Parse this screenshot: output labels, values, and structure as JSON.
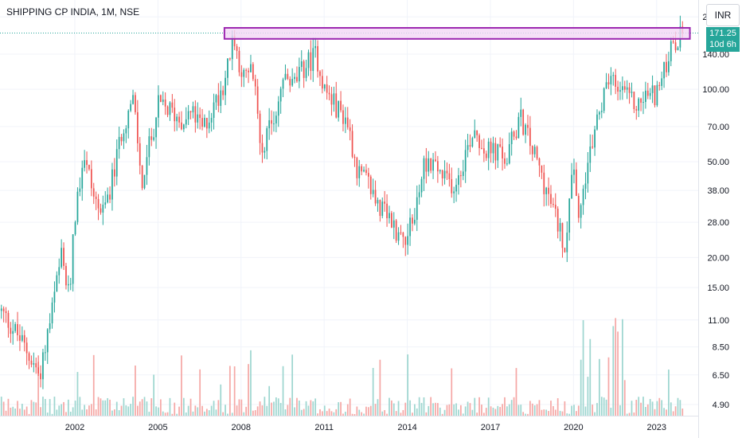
{
  "header": {
    "symbol_title": "SHIPPING CP INDIA, 1M, NSE",
    "currency_label": "INR"
  },
  "last_price": {
    "value": 171.25,
    "label": "171.25",
    "countdown": "10d 6h"
  },
  "colors": {
    "up": "#26a69a",
    "down": "#ef5350",
    "volume_up": "#9ed6d0",
    "volume_down": "#f5a8a6",
    "zone_border": "#9c27b0",
    "zone_fill": "#f3d7f5",
    "grid": "#f0f3fa",
    "axis_text": "#131722"
  },
  "chart_data": {
    "type": "candlestick",
    "log_scale": true,
    "x_ticks": [
      "2002",
      "2005",
      "2008",
      "2011",
      "2014",
      "2017",
      "2020",
      "2023"
    ],
    "y_ticks": [
      "4.90",
      "6.50",
      "8.50",
      "11.00",
      "15.00",
      "20.00",
      "28.00",
      "38.00",
      "50.00",
      "70.00",
      "100.00",
      "140.00",
      "200.00"
    ],
    "y_range": [
      4.4,
      235
    ],
    "x_range": [
      1999.3,
      2024.5
    ],
    "grid": true,
    "resistance_zone": {
      "x_start": 2007.4,
      "x_end": 2024.2,
      "price_low": 162,
      "price_high": 180
    },
    "last_price_line": 171.25,
    "price_path": [
      [
        1999.4,
        12
      ],
      [
        1999.9,
        10
      ],
      [
        2000.4,
        8
      ],
      [
        2000.8,
        6.5
      ],
      [
        2001.2,
        11
      ],
      [
        2001.6,
        20
      ],
      [
        2001.9,
        13
      ],
      [
        2002.0,
        25
      ],
      [
        2002.4,
        55
      ],
      [
        2002.8,
        35
      ],
      [
        2003.1,
        30
      ],
      [
        2003.5,
        45
      ],
      [
        2003.8,
        70
      ],
      [
        2004.2,
        90
      ],
      [
        2004.5,
        40
      ],
      [
        2004.8,
        60
      ],
      [
        2005.1,
        85
      ],
      [
        2005.5,
        82
      ],
      [
        2005.9,
        75
      ],
      [
        2006.3,
        80
      ],
      [
        2006.7,
        68
      ],
      [
        2007.1,
        85
      ],
      [
        2007.5,
        110
      ],
      [
        2007.8,
        160
      ],
      [
        2008.2,
        110
      ],
      [
        2008.5,
        120
      ],
      [
        2008.8,
        58
      ],
      [
        2009.2,
        70
      ],
      [
        2009.6,
        110
      ],
      [
        2010.0,
        105
      ],
      [
        2010.4,
        125
      ],
      [
        2010.8,
        140
      ],
      [
        2011.1,
        100
      ],
      [
        2011.5,
        85
      ],
      [
        2011.9,
        75
      ],
      [
        2012.3,
        45
      ],
      [
        2012.7,
        40
      ],
      [
        2013.1,
        32
      ],
      [
        2013.5,
        28
      ],
      [
        2013.9,
        24
      ],
      [
        2014.3,
        28
      ],
      [
        2014.7,
        50
      ],
      [
        2015.0,
        50
      ],
      [
        2015.4,
        42
      ],
      [
        2015.8,
        40
      ],
      [
        2016.2,
        55
      ],
      [
        2016.5,
        70
      ],
      [
        2016.9,
        55
      ],
      [
        2017.3,
        55
      ],
      [
        2017.7,
        50
      ],
      [
        2017.9,
        65
      ],
      [
        2018.2,
        75
      ],
      [
        2018.5,
        60
      ],
      [
        2018.9,
        45
      ],
      [
        2019.2,
        35
      ],
      [
        2019.5,
        28
      ],
      [
        2019.8,
        22
      ],
      [
        2020.0,
        50
      ],
      [
        2020.3,
        30
      ],
      [
        2020.6,
        45
      ],
      [
        2020.9,
        75
      ],
      [
        2021.2,
        95
      ],
      [
        2021.5,
        110
      ],
      [
        2021.8,
        95
      ],
      [
        2022.1,
        90
      ],
      [
        2022.4,
        85
      ],
      [
        2022.7,
        95
      ],
      [
        2023.0,
        95
      ],
      [
        2023.3,
        110
      ],
      [
        2023.5,
        140
      ],
      [
        2023.8,
        150
      ],
      [
        2024.0,
        171.25
      ]
    ]
  }
}
